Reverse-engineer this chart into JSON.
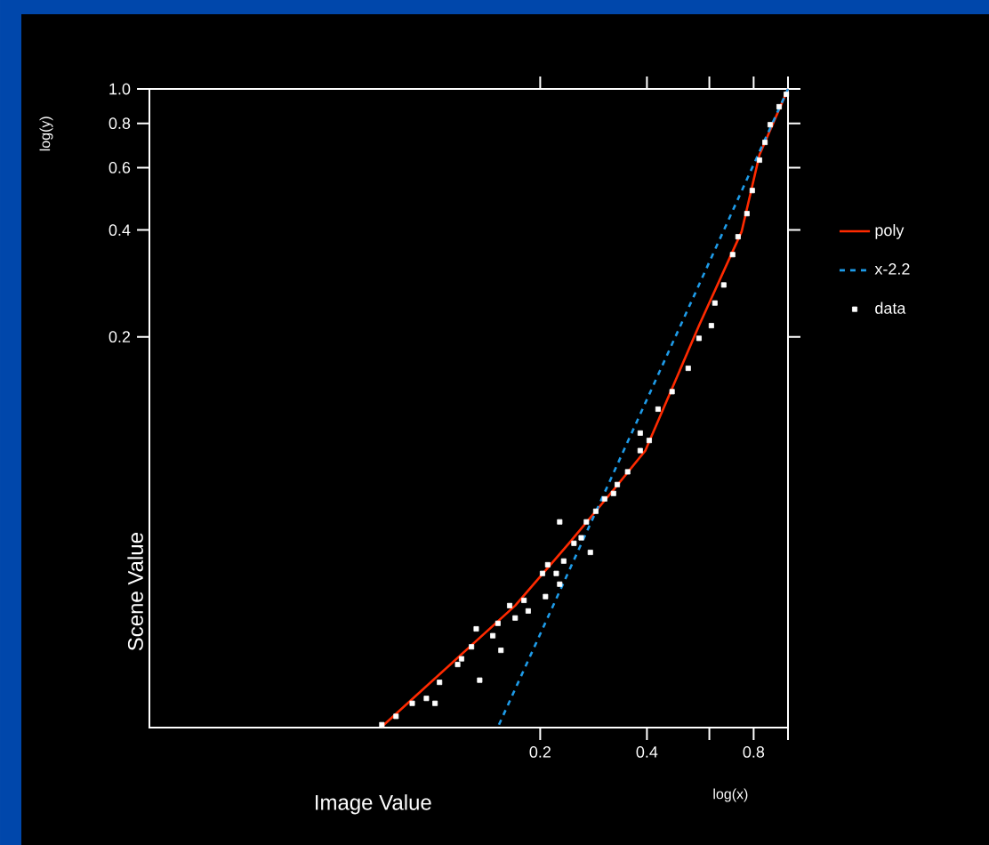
{
  "chart_data": {
    "type": "line",
    "xlabel": "Image Value",
    "ylabel": "Scene Value",
    "annotations": [
      "log(x)",
      "log(y)"
    ],
    "log": "xy",
    "xlim": [
      0.0158,
      1
    ],
    "ylim": [
      0.0158,
      1
    ],
    "xticks": [
      0.2,
      0.4,
      {
        "value": 0.6,
        "label": null
      },
      0.8,
      {
        "value": 1,
        "label": null
      }
    ],
    "yticks": [
      0.2,
      0.4,
      0.6,
      0.8,
      {
        "value": 1,
        "label": "1.0"
      }
    ],
    "grid": false,
    "legend": "right",
    "series": [
      {
        "name": "poly",
        "type": "line",
        "color": "#ff2a00",
        "line_style": "solid",
        "marker": "none",
        "x": [
          0.0715,
          0.17,
          0.241,
          0.322,
          0.396,
          0.561,
          0.74,
          0.831,
          1
        ],
        "values": [
          0.0159,
          0.0349,
          0.0523,
          0.074,
          0.0955,
          0.215,
          0.396,
          0.652,
          1
        ]
      },
      {
        "name": "x-2.2",
        "type": "line",
        "color": "#1e9be8",
        "line_style": "dashed",
        "marker": "none",
        "x": [
          0.153,
          0.3,
          0.6,
          1
        ],
        "values": [
          0.0161,
          0.0707,
          0.325,
          1
        ]
      },
      {
        "name": "data",
        "type": "scatter",
        "color": "#ffffff",
        "marker": "square",
        "x": [
          0.0715,
          0.0784,
          0.0871,
          0.0955,
          0.101,
          0.104,
          0.117,
          0.12,
          0.128,
          0.135,
          0.132,
          0.147,
          0.152,
          0.155,
          0.164,
          0.17,
          0.18,
          0.185,
          0.203,
          0.207,
          0.21,
          0.222,
          0.227,
          0.233,
          0.249,
          0.261,
          0.277,
          0.27,
          0.227,
          0.287,
          0.304,
          0.322,
          0.33,
          0.353,
          0.383,
          0.406,
          0.383,
          0.43,
          0.471,
          0.523,
          0.561,
          0.608,
          0.622,
          0.659,
          0.698,
          0.723,
          0.766,
          0.793,
          0.831,
          0.861,
          0.891,
          0.944,
          0.989
        ],
        "values": [
          0.0161,
          0.017,
          0.0185,
          0.0191,
          0.0185,
          0.0212,
          0.0238,
          0.0247,
          0.0267,
          0.0215,
          0.03,
          0.0287,
          0.0311,
          0.0261,
          0.0349,
          0.0322,
          0.0361,
          0.0337,
          0.043,
          0.037,
          0.0455,
          0.043,
          0.0401,
          0.0466,
          0.0523,
          0.0542,
          0.0493,
          0.0601,
          0.0601,
          0.0644,
          0.0698,
          0.0723,
          0.0766,
          0.0832,
          0.0955,
          0.102,
          0.107,
          0.125,
          0.14,
          0.163,
          0.198,
          0.215,
          0.249,
          0.28,
          0.341,
          0.383,
          0.445,
          0.517,
          0.63,
          0.707,
          0.793,
          0.891,
          0.966
        ]
      }
    ]
  }
}
